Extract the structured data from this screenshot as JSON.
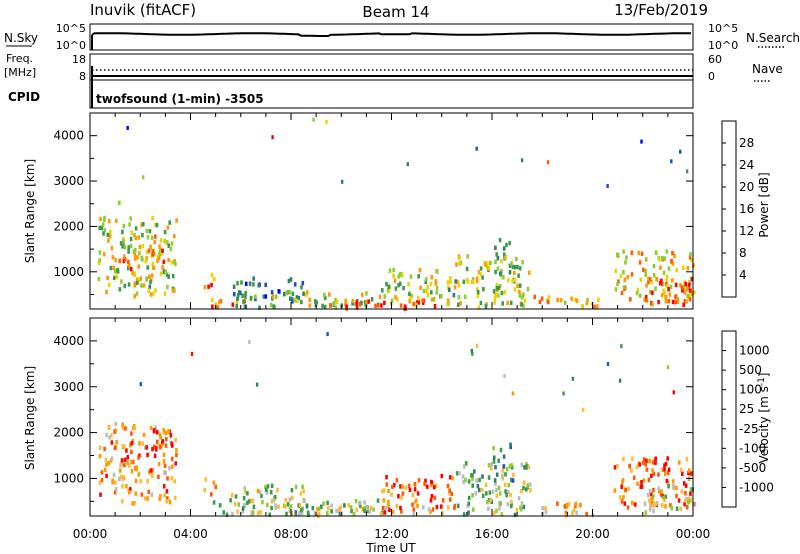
{
  "header": {
    "station": "Inuvik (fitACF)",
    "beam": "Beam 14",
    "date": "13/Feb/2019"
  },
  "panels": {
    "nsky": {
      "label": "N.Sky",
      "ticks": [
        "10^5",
        "10^0"
      ],
      "right_ticks": [
        "10^5",
        "10^0"
      ],
      "right_label": "N.Search"
    },
    "freq": {
      "label_top": "Freq.",
      "label_bottom": "[MHz]",
      "ticks": [
        "18",
        "8"
      ],
      "right_ticks": [
        "60",
        "0"
      ],
      "right_label": "Nave"
    },
    "cpid": {
      "label": "CPID",
      "mode": "twofsound (1-min) -3505"
    }
  },
  "chart_data": [
    {
      "type": "heatmap",
      "title": "",
      "xlabel": "Time UT",
      "ylabel": "Slant Range [km]",
      "x_ticks": [
        "00:00",
        "04:00",
        "08:00",
        "12:00",
        "16:00",
        "20:00",
        "00:00"
      ],
      "y_ticks": [
        "1000",
        "2000",
        "3000",
        "4000"
      ],
      "ylim": [
        180,
        4500
      ],
      "xlim_hours": [
        0,
        24
      ],
      "colorbar": {
        "label": "Power [dB]",
        "ticks": [
          "28",
          "24",
          "20",
          "16",
          "12",
          "8",
          "4"
        ],
        "range": [
          0,
          32
        ],
        "colors": [
          "#0000ff",
          "#1f4fb5",
          "#2e7d6e",
          "#3a9a4a",
          "#8fcc33",
          "#e8d400",
          "#ff9900",
          "#ff5a00",
          "#ff0000"
        ]
      },
      "clusters": [
        {
          "t0": 0.3,
          "t1": 3.4,
          "r0": 500,
          "r1": 2250,
          "level": 0.55
        },
        {
          "t0": 1.0,
          "t1": 1.6,
          "r0": 1000,
          "r1": 1400,
          "level": 0.9
        },
        {
          "t0": 2.2,
          "t1": 3.0,
          "r0": 1100,
          "r1": 2000,
          "level": 0.75
        },
        {
          "t0": 1.1,
          "t1": 1.3,
          "r0": 2400,
          "r1": 2600,
          "level": 0.35
        },
        {
          "t0": 4.5,
          "t1": 5.0,
          "r0": 700,
          "r1": 1100,
          "level": 0.8
        },
        {
          "t0": 4.8,
          "t1": 6.5,
          "r0": 250,
          "r1": 450,
          "level": 0.85
        },
        {
          "t0": 5.5,
          "t1": 8.5,
          "r0": 250,
          "r1": 900,
          "level": 0.3
        },
        {
          "t0": 7.0,
          "t1": 11.5,
          "r0": 250,
          "r1": 600,
          "level": 0.5
        },
        {
          "t0": 9.0,
          "t1": 14.5,
          "r0": 230,
          "r1": 420,
          "level": 0.95
        },
        {
          "t0": 11.5,
          "t1": 14.5,
          "r0": 300,
          "r1": 1100,
          "level": 0.55
        },
        {
          "t0": 14.5,
          "t1": 17.5,
          "r0": 250,
          "r1": 1400,
          "level": 0.55
        },
        {
          "t0": 16.0,
          "t1": 16.8,
          "r0": 1000,
          "r1": 1800,
          "level": 0.45
        },
        {
          "t0": 17.5,
          "t1": 20.3,
          "r0": 230,
          "r1": 500,
          "level": 0.65
        },
        {
          "t0": 20.8,
          "t1": 24.0,
          "r0": 400,
          "r1": 1500,
          "level": 0.65
        },
        {
          "t0": 22.0,
          "t1": 24.0,
          "r0": 300,
          "r1": 900,
          "level": 0.9
        }
      ]
    },
    {
      "type": "heatmap",
      "title": "",
      "xlabel": "Time UT",
      "ylabel": "Slant Range [km]",
      "x_ticks": [
        "00:00",
        "04:00",
        "08:00",
        "12:00",
        "16:00",
        "20:00",
        "00:00"
      ],
      "y_ticks": [
        "1000",
        "2000",
        "3000",
        "4000"
      ],
      "ylim": [
        180,
        4500
      ],
      "xlim_hours": [
        0,
        24
      ],
      "colorbar": {
        "label": "Velocity [m s^-1]",
        "ticks": [
          "1000",
          "500",
          "100",
          "25",
          "-25",
          "-100",
          "-500",
          "-1000"
        ],
        "range": [
          -1200,
          1200
        ],
        "colors": [
          "#ff0000",
          "#ff5a00",
          "#ff9900",
          "#ffbb33",
          "#bbbbbb",
          "#8fcc33",
          "#3a9a4a",
          "#2e7d6e",
          "#1f4fb5"
        ]
      },
      "clusters": [
        {
          "t0": 0.3,
          "t1": 3.4,
          "r0": 500,
          "r1": 2250,
          "level": 0.25
        },
        {
          "t0": 2.2,
          "t1": 3.0,
          "r0": 1500,
          "r1": 2100,
          "level": 0.15
        },
        {
          "t0": 4.5,
          "t1": 5.0,
          "r0": 700,
          "r1": 1100,
          "level": 0.3
        },
        {
          "t0": 4.8,
          "t1": 6.5,
          "r0": 250,
          "r1": 600,
          "level": 0.6
        },
        {
          "t0": 5.5,
          "t1": 8.5,
          "r0": 250,
          "r1": 900,
          "level": 0.55
        },
        {
          "t0": 7.0,
          "t1": 11.5,
          "r0": 250,
          "r1": 600,
          "level": 0.6
        },
        {
          "t0": 9.0,
          "t1": 14.5,
          "r0": 230,
          "r1": 420,
          "level": 0.5
        },
        {
          "t0": 11.5,
          "t1": 14.5,
          "r0": 300,
          "r1": 1100,
          "level": 0.2
        },
        {
          "t0": 14.5,
          "t1": 17.5,
          "r0": 250,
          "r1": 1400,
          "level": 0.6
        },
        {
          "t0": 16.0,
          "t1": 16.8,
          "r0": 1000,
          "r1": 1800,
          "level": 0.75
        },
        {
          "t0": 17.5,
          "t1": 20.3,
          "r0": 230,
          "r1": 500,
          "level": 0.35
        },
        {
          "t0": 20.8,
          "t1": 24.0,
          "r0": 400,
          "r1": 1500,
          "level": 0.2
        },
        {
          "t0": 22.0,
          "t1": 24.0,
          "r0": 300,
          "r1": 900,
          "level": 0.55
        }
      ]
    }
  ]
}
